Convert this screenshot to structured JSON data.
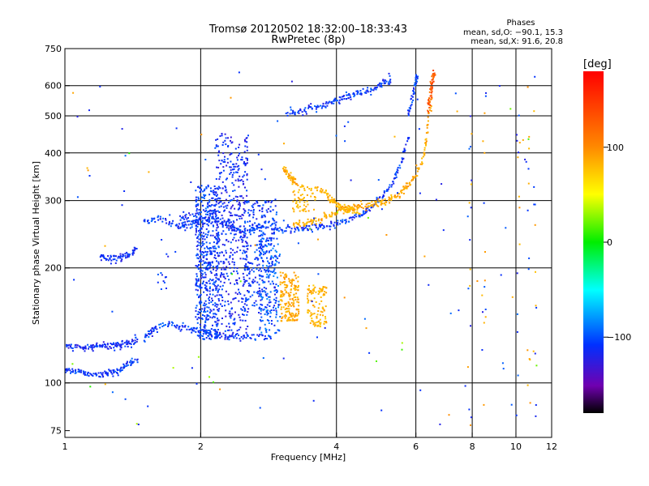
{
  "chart_data": {
    "type": "scatter",
    "title": "Tromsø 20120502 18:32:00–18:33:43",
    "subtitle": "RwPretec (8p)",
    "xlabel": "Frequency [MHz]",
    "ylabel": "Stationary phase Virtual Height [km]",
    "x_scale": "log",
    "y_scale": "log",
    "xlim": [
      1,
      12
    ],
    "ylim": [
      72,
      750
    ],
    "x_ticks": [
      1,
      2,
      4,
      6,
      8,
      10,
      12
    ],
    "x_tick_labels": [
      "1",
      "2",
      "4",
      "6",
      "8",
      "10",
      "12"
    ],
    "x_grid": [
      2,
      4,
      6,
      8,
      10
    ],
    "y_ticks": [
      75,
      100,
      200,
      300,
      400,
      500,
      600,
      750
    ],
    "y_tick_labels": [
      "75",
      "100",
      "200",
      "300",
      "400",
      "500",
      "600",
      "750"
    ],
    "y_grid": [
      100,
      200,
      300,
      400,
      500,
      600
    ],
    "grid": true,
    "phases_box": {
      "title": "Phases",
      "line1": "mean, sd,O: −90.1, 15.3",
      "line2": "mean, sd,X:  91.6, 20.8"
    },
    "colorbar": {
      "label": "[deg]",
      "range": [
        -180,
        180
      ],
      "ticks": [
        100,
        0,
        -100
      ],
      "tick_labels": [
        "100",
        "0",
        "−100"
      ]
    },
    "traces": [
      {
        "x": [
          1.0,
          1.05,
          1.1,
          1.15,
          1.2,
          1.25,
          1.3,
          1.35,
          1.4,
          1.45
        ],
        "y": [
          108,
          107,
          106,
          105,
          105,
          106,
          107,
          110,
          113,
          116
        ],
        "phase": -100
      },
      {
        "x": [
          1.0,
          1.05,
          1.1,
          1.15,
          1.2,
          1.25,
          1.3,
          1.35,
          1.4,
          1.45
        ],
        "y": [
          125,
          124,
          124,
          124,
          124,
          125,
          125,
          126,
          128,
          130
        ],
        "phase": -105
      },
      {
        "x": [
          1.5,
          1.55,
          1.6,
          1.7,
          1.8,
          1.9,
          2.0,
          2.1,
          2.3,
          2.5,
          2.7,
          2.9
        ],
        "y": [
          130,
          136,
          140,
          143,
          140,
          138,
          137,
          134,
          132,
          132,
          132,
          131
        ],
        "phase": -100
      },
      {
        "x": [
          1.2,
          1.25,
          1.3,
          1.35,
          1.4,
          1.45
        ],
        "y": [
          215,
          212,
          212,
          214,
          218,
          224
        ],
        "phase": -105
      },
      {
        "x": [
          1.5,
          1.6,
          1.7,
          1.8,
          1.9,
          2.0,
          2.1,
          2.2,
          2.3,
          2.4,
          2.5,
          2.6,
          2.7,
          2.8
        ],
        "y": [
          262,
          268,
          265,
          258,
          262,
          266,
          270,
          266,
          258,
          252,
          250,
          252,
          256,
          262
        ],
        "phase": -100
      },
      {
        "x": [
          2.8,
          3.0,
          3.2,
          3.4,
          3.6,
          3.8,
          4.0,
          4.2,
          4.4,
          4.6,
          4.8,
          5.0,
          5.2,
          5.4,
          5.6,
          5.8
        ],
        "y": [
          255,
          253,
          253,
          254,
          256,
          258,
          262,
          266,
          272,
          280,
          290,
          303,
          320,
          345,
          385,
          450
        ],
        "phase": -100
      },
      {
        "x": [
          5.8,
          5.9,
          6.0,
          6.05
        ],
        "y": [
          500,
          560,
          610,
          640
        ],
        "phase": -100
      },
      {
        "x": [
          3.2,
          3.4,
          3.6,
          3.8,
          4.0,
          4.2,
          4.4,
          4.6,
          4.8,
          5.0,
          5.2,
          5.4,
          5.6,
          5.8,
          6.0,
          6.2,
          6.3,
          6.4,
          6.5
        ],
        "y": [
          258,
          262,
          266,
          272,
          280,
          285,
          288,
          290,
          293,
          296,
          300,
          306,
          315,
          330,
          350,
          380,
          420,
          480,
          560
        ],
        "phase": 100
      },
      {
        "x": [
          6.4,
          6.45,
          6.5,
          6.55,
          6.6
        ],
        "y": [
          520,
          560,
          600,
          630,
          650
        ],
        "phase": 140
      },
      {
        "x": [
          3.1,
          3.3,
          3.5,
          3.7,
          3.9,
          4.1,
          4.3,
          4.5,
          4.7,
          4.9,
          5.1,
          5.3
        ],
        "y": [
          510,
          515,
          522,
          530,
          540,
          552,
          565,
          575,
          585,
          595,
          610,
          630
        ],
        "phase": -100
      },
      {
        "x": [
          3.6,
          3.8,
          3.9,
          4.0,
          4.1,
          4.2,
          4.3,
          4.5
        ],
        "y": [
          325,
          312,
          302,
          294,
          288,
          284,
          282,
          280
        ],
        "phase": 95
      },
      {
        "x": [
          3.05,
          3.1,
          3.15,
          3.2,
          3.25
        ],
        "y": [
          365,
          355,
          348,
          340,
          335
        ],
        "phase": 100
      }
    ],
    "columns": [
      {
        "x": [
          1.95,
          2.2
        ],
        "y": [
          130,
          330
        ],
        "phase": -100,
        "n": 520
      },
      {
        "x": [
          2.15,
          2.55
        ],
        "y": [
          130,
          450
        ],
        "phase": -105,
        "n": 480
      },
      {
        "x": [
          2.5,
          2.95
        ],
        "y": [
          150,
          300
        ],
        "phase": -100,
        "n": 300
      },
      {
        "x": [
          2.7,
          3.0
        ],
        "y": [
          135,
          240
        ],
        "phase": -90,
        "n": 120
      },
      {
        "x": [
          3.0,
          3.3
        ],
        "y": [
          145,
          195
        ],
        "phase": 100,
        "n": 170
      },
      {
        "x": [
          3.45,
          3.8
        ],
        "y": [
          140,
          180
        ],
        "phase": 95,
        "n": 110
      },
      {
        "x": [
          1.6,
          1.68
        ],
        "y": [
          175,
          195
        ],
        "phase": -100,
        "n": 10
      },
      {
        "x": [
          1.8,
          2.0
        ],
        "y": [
          250,
          280
        ],
        "phase": -100,
        "n": 40
      },
      {
        "x": [
          3.2,
          3.6
        ],
        "y": [
          280,
          330
        ],
        "phase": 95,
        "n": 60
      }
    ],
    "scatter_noise": {
      "x_range": [
        1.0,
        11.5
      ],
      "y_range": [
        75,
        650
      ],
      "n": 130
    }
  }
}
